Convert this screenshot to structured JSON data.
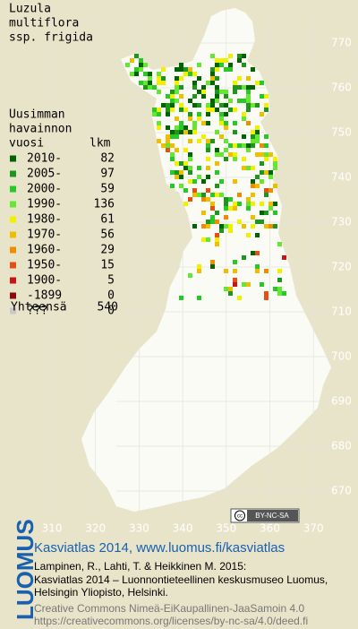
{
  "title": [
    "Luzula",
    "multiflora",
    "ssp. frigida"
  ],
  "legend": {
    "header": [
      "Uusimman",
      "havainnon",
      "vuosi"
    ],
    "count_header": "lkm",
    "rows": [
      {
        "label": "2010-",
        "count": 82,
        "color": "#006400"
      },
      {
        "label": "2005-",
        "count": 97,
        "color": "#1e961e"
      },
      {
        "label": "2000-",
        "count": 59,
        "color": "#28c828"
      },
      {
        "label": "1990-",
        "count": 136,
        "color": "#64e632"
      },
      {
        "label": "1980-",
        "count": 61,
        "color": "#f0f000"
      },
      {
        "label": "1970-",
        "count": 56,
        "color": "#f0be00"
      },
      {
        "label": "1960-",
        "count": 29,
        "color": "#f08c00"
      },
      {
        "label": "1950-",
        "count": 15,
        "color": "#e65014"
      },
      {
        "label": "1900-",
        "count": 5,
        "color": "#c81414"
      },
      {
        "label": "-1899",
        "count": 0,
        "color": "#8c0a0a"
      },
      {
        "label": "???",
        "count": 0,
        "color": "#c8c8c8"
      }
    ],
    "total_label": "Yhteensä",
    "total": 540
  },
  "grid": {
    "yticks": [
      770,
      760,
      750,
      740,
      730,
      720,
      710,
      700,
      690,
      680,
      670
    ],
    "xticks": [
      310,
      320,
      330,
      340,
      350,
      360,
      370
    ]
  },
  "license_badge": "BY-NC-SA",
  "footer": {
    "logo": "LUOMUS",
    "heading": "Kasviatlas 2014, www.luomus.fi/kasviatlas",
    "citation": [
      "Lampinen, R., Lahti, T. & Heikkinen M. 2015:",
      "Kasviatlas 2014 – Luonnontieteellinen keskusmuseo Luomus,",
      "Helsingin Yliopisto, Helsinki."
    ],
    "license": [
      "Creative Commons Nimeä-EiKaupallinen-JaaSamoin 4.0",
      "https://creativecommons.org/licenses/by-nc-sa/4.0/deed.fi"
    ]
  }
}
